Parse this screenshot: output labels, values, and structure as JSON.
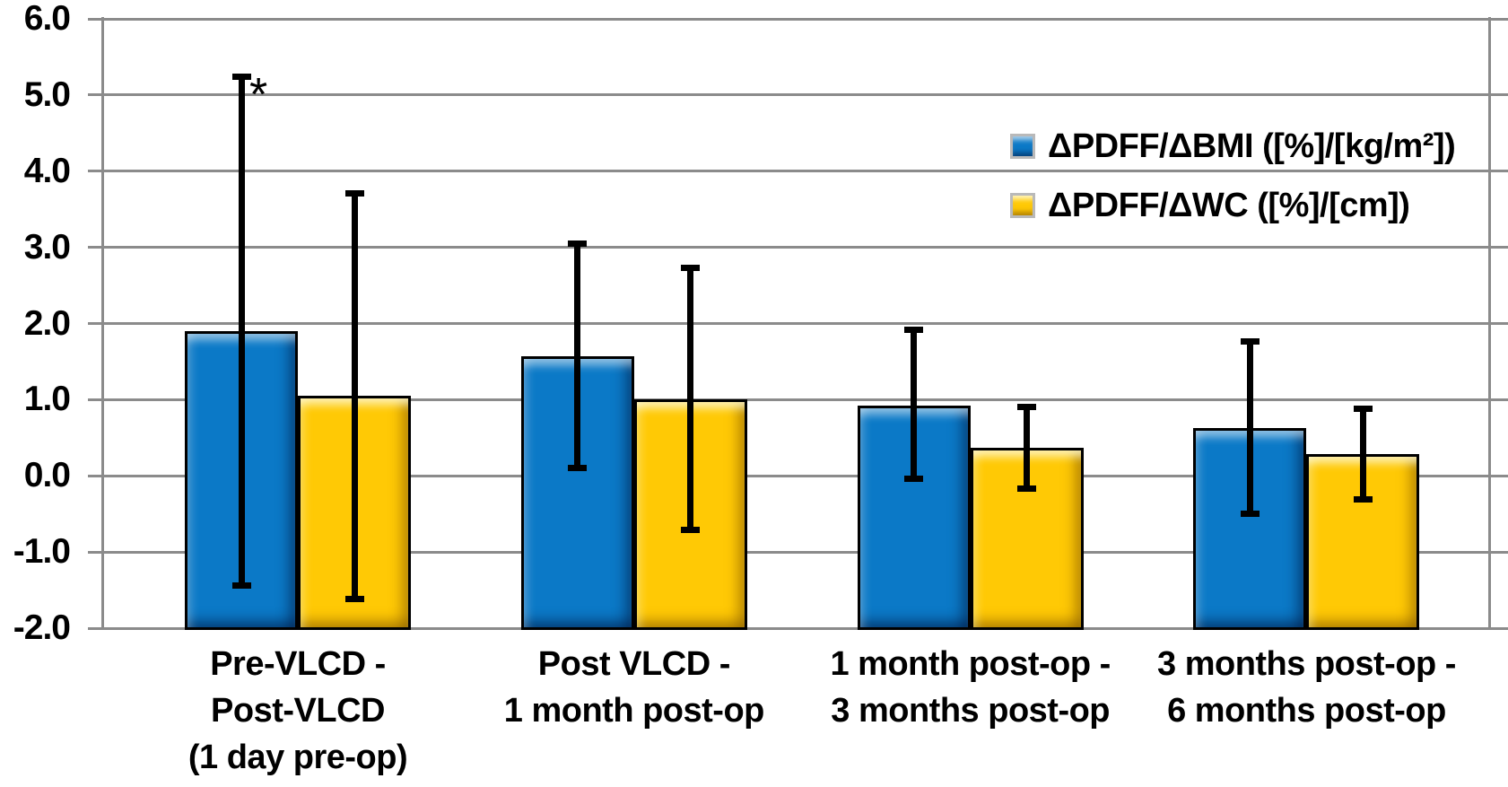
{
  "chart_data": {
    "type": "bar",
    "title": "",
    "xlabel": "",
    "ylabel": "",
    "ylim": [
      -2.0,
      6.0
    ],
    "ytick_step": 1.0,
    "ytick_labels": [
      "6.0",
      "5.0",
      "4.0",
      "3.0",
      "2.0",
      "1.0",
      "0.0",
      "-1.0",
      "-2.0"
    ],
    "grid": "horizontal",
    "legend_position": "top-right",
    "categories": [
      {
        "lines": [
          "Pre-VLCD -",
          "Post-VLCD",
          "(1 day pre-op)"
        ]
      },
      {
        "lines": [
          "Post VLCD -",
          "1 month post-op"
        ]
      },
      {
        "lines": [
          "1 month post-op -",
          "3 months post-op"
        ]
      },
      {
        "lines": [
          "3 months post-op -",
          "6 months post-op"
        ]
      }
    ],
    "series": [
      {
        "id": "bmi",
        "name": "ΔPDFF/ΔBMI ([%]/[kg/m²])",
        "color": "#0b79c7",
        "values": [
          1.9,
          1.57,
          0.92,
          0.63
        ],
        "error_high": [
          5.25,
          3.05,
          1.92,
          1.77
        ],
        "error_low": [
          -1.45,
          0.1,
          -0.05,
          -0.5
        ]
      },
      {
        "id": "wc",
        "name": "ΔPDFF/ΔWC ([%]/[cm])",
        "color": "#ffc905",
        "values": [
          1.05,
          1.01,
          0.37,
          0.28
        ],
        "error_high": [
          3.72,
          2.74,
          0.91,
          0.89
        ],
        "error_low": [
          -1.62,
          -0.71,
          -0.17,
          -0.31
        ]
      }
    ],
    "annotations": [
      {
        "text": "*",
        "series": 0,
        "group": 0,
        "position": "above-error-bar"
      }
    ]
  },
  "colors": {
    "grid": "#8b8b8b",
    "bar_border": "#000000",
    "error_bar": "#000000",
    "background": "#ffffff",
    "text": "#000000",
    "legend_swatch_border": "#b9b9b9"
  }
}
